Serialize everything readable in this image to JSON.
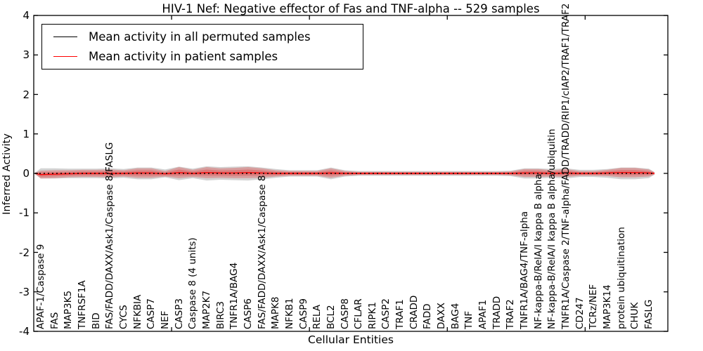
{
  "chart_data": {
    "type": "area",
    "title": "HIV-1 Nef: Negative effector of Fas and TNF-alpha -- 529 samples",
    "xlabel": "Cellular Entities",
    "ylabel": "Inferred Activity",
    "ylim": [
      -4,
      4
    ],
    "xlim_positions": [
      0,
      46
    ],
    "yticks": [
      4,
      3,
      2,
      1,
      0,
      -1,
      -2,
      -3,
      -4
    ],
    "xtick_positions": [
      10,
      20,
      30,
      40
    ],
    "grid": false,
    "categories": [
      "APAF-1/Caspase 9",
      "FAS",
      "MAP3K5",
      "TNFRSF1A",
      "BID",
      "FAS/FADD/DAXX/Ask1/Caspase 8/FASLG",
      "CYCS",
      "NFKBIA",
      "CASP7",
      "NEF",
      "CASP3",
      "Caspase 8 (4 units)",
      "MAP2K7",
      "BIRC3",
      "TNFR1A/BAG4",
      "CASP6",
      "FAS/FADD/DAXX/Ask1/Caspase 8",
      "MAPK8",
      "NFKB1",
      "CASP9",
      "RELA",
      "BCL2",
      "CASP8",
      "CFLAR",
      "RIPK1",
      "CASP2",
      "TRAF1",
      "CRADD",
      "FADD",
      "DAXX",
      "BAG4",
      "TNF",
      "APAF1",
      "TRADD",
      "TRAF2",
      "TNFR1A/BAG4/TNF-alpha",
      "NF-kappa-B/RelA/I kappa B alpha",
      "NF-kappa-B/RelA/I kappa B alpha/ubiquitin",
      "TNFR1A/Caspase 2/TNF-alpha/FADD/TRADD/RIP1/cIAP2/TRAF1/TRAF2",
      "CD247",
      "TCRz/NEF",
      "MAP3K14",
      "protein ubiquitination",
      "CHUK",
      "FASLG"
    ],
    "series": [
      {
        "name": "Mean activity in all permuted samples",
        "type": "line",
        "style": "dashed",
        "color": "#000000",
        "values": [
          0,
          0,
          0,
          0,
          0,
          0,
          0,
          0,
          0,
          0,
          0,
          0,
          0,
          0,
          0,
          0,
          0,
          0,
          0,
          0,
          0,
          0,
          0,
          0,
          0,
          0,
          0,
          0,
          0,
          0,
          0,
          0,
          0,
          0,
          0,
          0,
          0,
          0,
          0,
          0,
          0,
          0,
          0,
          0,
          0
        ]
      },
      {
        "name": "Mean activity in patient samples",
        "type": "line",
        "style": "solid",
        "color": "#ff0000",
        "values": [
          -0.03,
          -0.02,
          -0.01,
          0,
          0,
          0,
          0,
          0.01,
          0.01,
          -0.01,
          0.02,
          0,
          0.02,
          0.01,
          0.01,
          0.02,
          0.01,
          0,
          0,
          0,
          0,
          0.01,
          0,
          0,
          0,
          0,
          0,
          0,
          0,
          0,
          0,
          0,
          0,
          0,
          0,
          0.01,
          0.01,
          0,
          0.01,
          0,
          0,
          0.01,
          0.02,
          0.02,
          0.01
        ]
      },
      {
        "name": "Patient activity spread (half-width)",
        "type": "band",
        "color": "#e03030",
        "opacity": 0.32,
        "values": [
          0.1,
          0.1,
          0.09,
          0.09,
          0.09,
          0.1,
          0.08,
          0.12,
          0.12,
          0.07,
          0.14,
          0.09,
          0.14,
          0.12,
          0.13,
          0.14,
          0.12,
          0.08,
          0.06,
          0.06,
          0.06,
          0.12,
          0.06,
          0.04,
          0.04,
          0.04,
          0.04,
          0.04,
          0.04,
          0.04,
          0.04,
          0.04,
          0.04,
          0.04,
          0.05,
          0.1,
          0.1,
          0.08,
          0.1,
          0.06,
          0.06,
          0.08,
          0.12,
          0.12,
          0.09
        ]
      },
      {
        "name": "Permuted activity spread (half-width)",
        "type": "band",
        "color": "#8c8c8c",
        "opacity": 0.38,
        "values": [
          0.13,
          0.13,
          0.12,
          0.12,
          0.12,
          0.13,
          0.11,
          0.15,
          0.15,
          0.1,
          0.17,
          0.12,
          0.18,
          0.16,
          0.17,
          0.18,
          0.15,
          0.11,
          0.08,
          0.08,
          0.08,
          0.15,
          0.08,
          0.06,
          0.06,
          0.06,
          0.06,
          0.06,
          0.06,
          0.06,
          0.06,
          0.06,
          0.06,
          0.06,
          0.07,
          0.13,
          0.13,
          0.11,
          0.13,
          0.09,
          0.09,
          0.11,
          0.15,
          0.15,
          0.12
        ]
      }
    ],
    "legend": {
      "position": "upper left",
      "entries": [
        {
          "label": "Mean activity in all permuted samples",
          "color": "#000000"
        },
        {
          "label": "Mean activity in patient samples",
          "color": "#ff0000"
        }
      ]
    }
  },
  "colors": {
    "frame": "#000000",
    "background": "#ffffff",
    "patient_line": "#ff0000",
    "permuted_line": "#000000"
  }
}
